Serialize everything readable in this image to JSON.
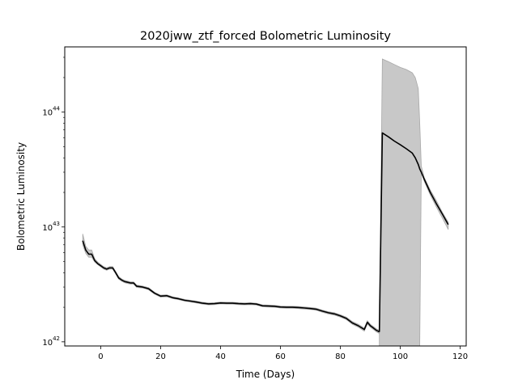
{
  "chart_data": {
    "type": "line",
    "title": "2020jww_ztf_forced Bolometric Luminosity",
    "xlabel": "Time (Days)",
    "ylabel": "Bolometric Luminosity",
    "xlim": [
      -12,
      122
    ],
    "ylim": [
      9.2e+41,
      3.7e+44
    ],
    "yscale": "log",
    "grid": false,
    "xticks": [
      0,
      20,
      40,
      60,
      80,
      100,
      120
    ],
    "xtick_labels": [
      "0",
      "20",
      "40",
      "60",
      "80",
      "100",
      "120"
    ],
    "yticks": [
      1e+42,
      1e+43,
      1e+44
    ],
    "ytick_labels": [
      {
        "base": "10",
        "exp": "42"
      },
      {
        "base": "10",
        "exp": "43"
      },
      {
        "base": "10",
        "exp": "44"
      }
    ],
    "colors": {
      "line": "#000000",
      "band": "#c8c8c8",
      "band_edge": "#a8a8a8"
    },
    "series": [
      {
        "x": [
          -6,
          -5,
          -4,
          -3,
          -2,
          -1,
          0,
          1,
          2,
          3,
          4,
          5,
          6,
          7,
          8,
          9,
          10,
          11,
          12,
          14,
          16,
          18,
          20,
          22,
          24,
          26,
          28,
          30,
          32,
          34,
          36,
          38,
          40,
          42,
          44,
          46,
          48,
          50,
          52,
          54,
          56,
          58,
          60,
          62,
          64,
          66,
          68,
          70,
          72,
          74,
          76,
          78,
          80,
          82,
          84,
          86,
          88,
          89,
          90,
          91,
          92,
          93
        ],
        "y": [
          7.6e+42,
          6.3e+42,
          5.8e+42,
          5.8e+42,
          5.1e+42,
          4.8e+42,
          4.6e+42,
          4.4e+42,
          4.3e+42,
          4.4e+42,
          4.4e+42,
          4e+42,
          3.6e+42,
          3.45e+42,
          3.35e+42,
          3.3e+42,
          3.25e+42,
          3.25e+42,
          3.05e+42,
          3e+42,
          2.9e+42,
          2.65e+42,
          2.5e+42,
          2.52e+42,
          2.42e+42,
          2.37e+42,
          2.3e+42,
          2.26e+42,
          2.22e+42,
          2.17e+42,
          2.14e+42,
          2.15e+42,
          2.18e+42,
          2.17e+42,
          2.17e+42,
          2.15e+42,
          2.14e+42,
          2.15e+42,
          2.13e+42,
          2.06e+42,
          2.05e+42,
          2.04e+42,
          2.01e+42,
          2e+42,
          2e+42,
          1.99e+42,
          1.97e+42,
          1.95e+42,
          1.92e+42,
          1.85e+42,
          1.79e+42,
          1.75e+42,
          1.68e+42,
          1.6e+42,
          1.46e+42,
          1.38e+42,
          1.28e+42,
          1.48e+42,
          1.38e+42,
          1.32e+42,
          1.26e+42,
          1.22e+42
        ],
        "y_lower": [
          7e+42,
          5.9e+42,
          5.45e+42,
          5.45e+42,
          4.95e+42,
          4.7e+42,
          4.5e+42,
          4.3e+42,
          4.2e+42,
          4.3e+42,
          4.3e+42,
          3.9e+42,
          3.52e+42,
          3.37e+42,
          3.27e+42,
          3.22e+42,
          3.18e+42,
          3.18e+42,
          2.98e+42,
          2.94e+42,
          2.84e+42,
          2.6e+42,
          2.45e+42,
          2.47e+42,
          2.38e+42,
          2.33e+42,
          2.26e+42,
          2.22e+42,
          2.18e+42,
          2.13e+42,
          2.1e+42,
          2.11e+42,
          2.14e+42,
          2.13e+42,
          2.13e+42,
          2.11e+42,
          2.1e+42,
          2.11e+42,
          2.09e+42,
          2.02e+42,
          2.01e+42,
          2e+42,
          1.97e+42,
          1.96e+42,
          1.96e+42,
          1.95e+42,
          1.93e+42,
          1.91e+42,
          1.88e+42,
          1.81e+42,
          1.75e+42,
          1.71e+42,
          1.64e+42,
          1.56e+42,
          1.42e+42,
          1.34e+42,
          1.24e+42,
          1.43e+42,
          1.34e+42,
          1.28e+42,
          1.22e+42,
          1.18e+42
        ],
        "y_upper": [
          8.7e+42,
          6.8e+42,
          6.3e+42,
          6.3e+42,
          5.3e+42,
          4.95e+42,
          4.72e+42,
          4.52e+42,
          4.42e+42,
          4.52e+42,
          4.52e+42,
          4.1e+42,
          3.7e+42,
          3.53e+42,
          3.43e+42,
          3.38e+42,
          3.32e+42,
          3.32e+42,
          3.12e+42,
          3.06e+42,
          2.96e+42,
          2.7e+42,
          2.55e+42,
          2.57e+42,
          2.47e+42,
          2.41e+42,
          2.34e+42,
          2.3e+42,
          2.26e+42,
          2.21e+42,
          2.18e+42,
          2.19e+42,
          2.22e+42,
          2.21e+42,
          2.21e+42,
          2.19e+42,
          2.18e+42,
          2.19e+42,
          2.17e+42,
          2.1e+42,
          2.09e+42,
          2.08e+42,
          2.05e+42,
          2.04e+42,
          2.04e+42,
          2.03e+42,
          2.01e+42,
          1.99e+42,
          1.96e+42,
          1.89e+42,
          1.83e+42,
          1.79e+42,
          1.72e+42,
          1.64e+42,
          1.5e+42,
          1.42e+42,
          1.32e+42,
          1.53e+42,
          1.42e+42,
          1.36e+42,
          1.3e+42,
          1.26e+42
        ]
      },
      {
        "x": [
          93,
          94,
          96,
          98,
          100,
          102,
          104,
          105,
          106,
          106.5,
          107,
          108,
          110,
          112,
          114,
          116
        ],
        "y": [
          1.22e+42,
          6.6e+43,
          6.1e+43,
          5.6e+43,
          5.2e+43,
          4.8e+43,
          4.4e+43,
          4e+43,
          3.5e+43,
          3.2e+43,
          3e+43,
          2.6e+43,
          2e+43,
          1.6e+43,
          1.3e+43,
          1.05e+43
        ],
        "y_lower": [
          9.2e+41,
          9.2e+41,
          9.2e+41,
          9.2e+41,
          9.2e+41,
          9.2e+41,
          9.2e+41,
          9.2e+41,
          9.2e+41,
          9.2e+41,
          3e+43,
          2.5e+43,
          1.9e+43,
          1.5e+43,
          1.2e+43,
          9.5e+42
        ],
        "y_upper": [
          1.26e+42,
          2.9e+44,
          2.75e+44,
          2.6e+44,
          2.45e+44,
          2.35e+44,
          2.2e+44,
          2e+44,
          1.6e+44,
          8e+43,
          3.4e+43,
          2.7e+43,
          2.1e+43,
          1.7e+43,
          1.35e+43,
          1.1e+43
        ]
      }
    ]
  }
}
